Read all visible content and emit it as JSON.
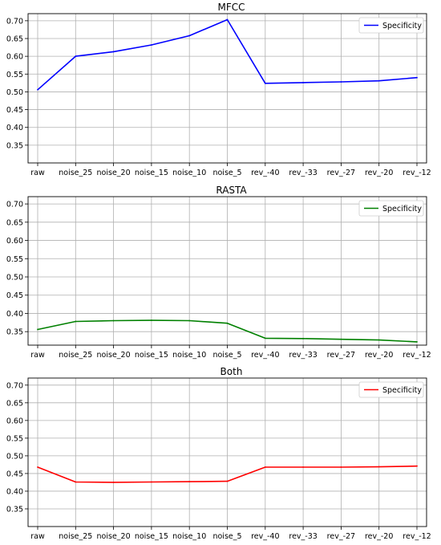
{
  "chart_data": [
    {
      "type": "line",
      "title": "MFCC",
      "categories": [
        "raw",
        "noise_25",
        "noise_20",
        "noise_15",
        "noise_10",
        "noise_5",
        "rev_-40",
        "rev_-33",
        "rev_-27",
        "rev_-20",
        "rev_-12"
      ],
      "series": [
        {
          "name": "Specificity",
          "color": "#0000ff",
          "values": [
            0.506,
            0.6,
            0.613,
            0.632,
            0.658,
            0.703,
            0.524,
            0.526,
            0.528,
            0.531,
            0.54
          ]
        }
      ],
      "ylim": [
        0.3,
        0.72
      ],
      "yticks": [
        "0.35",
        "0.40",
        "0.45",
        "0.50",
        "0.55",
        "0.60",
        "0.65",
        "0.70"
      ],
      "xlabel": "",
      "ylabel": "",
      "grid": true,
      "legend_position": "top-right"
    },
    {
      "type": "line",
      "title": "RASTA",
      "categories": [
        "raw",
        "noise_25",
        "noise_20",
        "noise_15",
        "noise_10",
        "noise_5",
        "rev_-40",
        "rev_-33",
        "rev_-27",
        "rev_-20",
        "rev_-12"
      ],
      "series": [
        {
          "name": "Specificity",
          "color": "#008000",
          "values": [
            0.356,
            0.378,
            0.38,
            0.381,
            0.38,
            0.373,
            0.332,
            0.331,
            0.329,
            0.327,
            0.322
          ]
        }
      ],
      "ylim": [
        0.313,
        0.72
      ],
      "yticks": [
        "0.35",
        "0.40",
        "0.45",
        "0.50",
        "0.55",
        "0.60",
        "0.65",
        "0.70"
      ],
      "xlabel": "",
      "ylabel": "",
      "grid": true,
      "legend_position": "top-right"
    },
    {
      "type": "line",
      "title": "Both",
      "categories": [
        "raw",
        "noise_25",
        "noise_20",
        "noise_15",
        "noise_10",
        "noise_5",
        "rev_-40",
        "rev_-33",
        "rev_-27",
        "rev_-20",
        "rev_-12"
      ],
      "series": [
        {
          "name": "Specificity",
          "color": "#ff0000",
          "values": [
            0.468,
            0.426,
            0.425,
            0.426,
            0.427,
            0.428,
            0.468,
            0.468,
            0.468,
            0.469,
            0.471
          ]
        }
      ],
      "ylim": [
        0.3,
        0.72
      ],
      "yticks": [
        "0.35",
        "0.40",
        "0.45",
        "0.50",
        "0.55",
        "0.60",
        "0.65",
        "0.70"
      ],
      "xlabel": "",
      "ylabel": "",
      "grid": true,
      "legend_position": "top-right"
    }
  ]
}
